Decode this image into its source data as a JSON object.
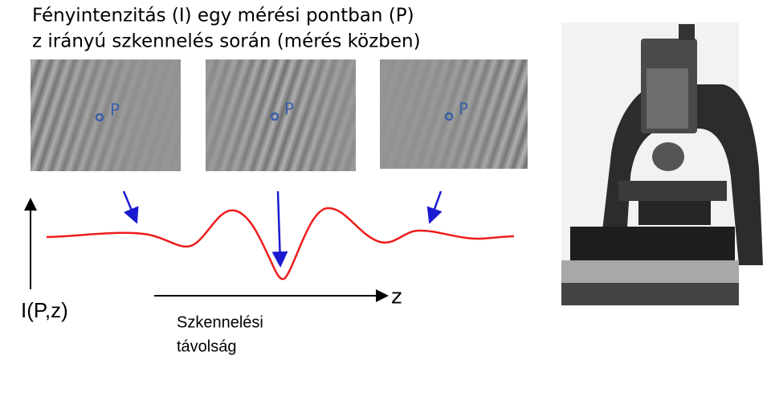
{
  "title": {
    "lines": [
      "Fényintenzitás (I) egy mérési pontban (P)",
      "z irányú szkennelés során (mérés közben)"
    ]
  },
  "panels": [
    {
      "label": "P"
    },
    {
      "label": "P"
    },
    {
      "label": "P"
    }
  ],
  "axes": {
    "y_label": "I(P,z)",
    "x_label": "z"
  },
  "caption": {
    "lines": [
      "Szkennelési",
      "távolság"
    ]
  }
}
